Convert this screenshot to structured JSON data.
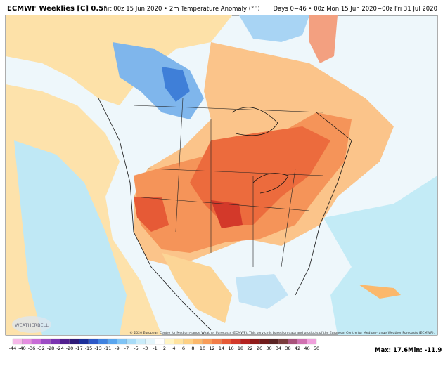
{
  "header": {
    "title": "ECMWF Weeklies [C] 0.5°",
    "subtitle": "Init 00z 15 Jun 2020 • 2m Temperature Anomaly (°F)",
    "period": "Days 0−46 • 00z Mon 15 Jun 2020−00z Fri 31 Jul 2020"
  },
  "map": {
    "credit": "© 2020 European Centre for Medium-range Weather Forecasts (ECMWF). This service is based on data and products of the European Centre for Medium-range Weather Forecasts (ECMWF).",
    "logo": "WEATHERBELL"
  },
  "legend": {
    "ticks": [
      -44,
      -40,
      -36,
      -32,
      -28,
      -24,
      -20,
      -17,
      -15,
      -13,
      -11,
      -9,
      -7,
      -5,
      -3,
      -1,
      2,
      4,
      6,
      8,
      10,
      12,
      14,
      16,
      18,
      22,
      26,
      30,
      34,
      38,
      42,
      46,
      50
    ],
    "colors": [
      "#f5b8e8",
      "#e58ee0",
      "#c86cd6",
      "#9c4cc4",
      "#7a33b0",
      "#52208f",
      "#2e1a78",
      "#1b2f9a",
      "#2c58c8",
      "#3f82e0",
      "#5aa6ef",
      "#7fc4f6",
      "#a8dcf8",
      "#c9ecfa",
      "#e4f5fb",
      "#ffffff",
      "#fff4c4",
      "#ffe3a0",
      "#fdd085",
      "#fbb86c",
      "#f89c58",
      "#f27c47",
      "#e65a36",
      "#d3392a",
      "#b32220",
      "#8e1a19",
      "#6f1a1a",
      "#5a2424",
      "#7a3c3c",
      "#a8527a",
      "#d070b0",
      "#f0a0dc"
    ],
    "max": "Max: 17.6",
    "min": "Min: -11.9"
  }
}
